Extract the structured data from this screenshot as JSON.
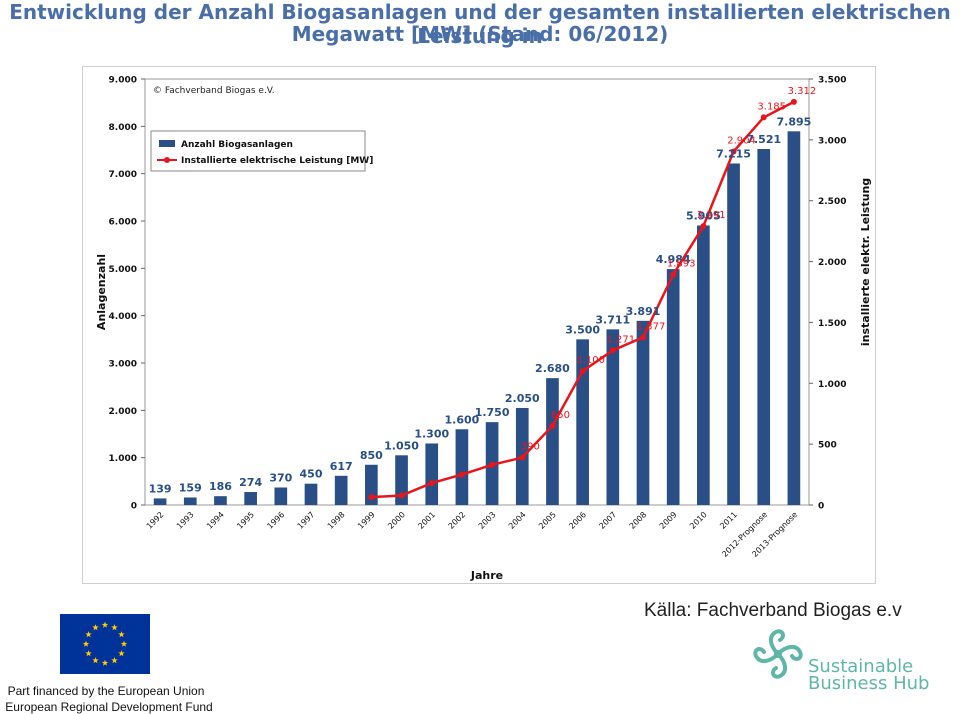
{
  "header": {
    "line1": "Entwicklung der Anzahl Biogasanlagen und der gesamten installierten elektrischen Leistung in",
    "line2": "Megawatt [MW] (Stand: 06/2012)"
  },
  "chart_data": {
    "type": "bar",
    "copyright": "© Fachverband Biogas e.V.",
    "categories": [
      "1992",
      "1993",
      "1994",
      "1995",
      "1996",
      "1997",
      "1998",
      "1999",
      "2000",
      "2001",
      "2002",
      "2003",
      "2004",
      "2005",
      "2006",
      "2007",
      "2008",
      "2009",
      "2010",
      "2011",
      "2012-Prognose",
      "2013-Prognose"
    ],
    "series": [
      {
        "name": "Anzahl Biogasanlagen",
        "kind": "bar",
        "axis": "left",
        "color": "#2a4f86",
        "label_color": "#2a4f86",
        "values": [
          139,
          159,
          186,
          274,
          370,
          450,
          617,
          850,
          1050,
          1300,
          1600,
          1750,
          2050,
          2680,
          3500,
          3711,
          3891,
          4984,
          5905,
          7215,
          7521,
          7895
        ],
        "labels": [
          "139",
          "159",
          "186",
          "274",
          "370",
          "450",
          "617",
          "850",
          "1.050",
          "1.300",
          "1.600",
          "1.750",
          "2.050",
          "2.680",
          "3.500",
          "3.711",
          "3.891",
          "4.984",
          "5.905",
          "7.215",
          "7.521",
          "7.895"
        ]
      },
      {
        "name": "Installierte elektrische Leistung [MW]",
        "kind": "line",
        "axis": "right",
        "color": "#e8151b",
        "label_color": "#e8151b",
        "values": [
          null,
          null,
          null,
          null,
          null,
          null,
          null,
          65,
          78,
          180,
          250,
          330,
          390,
          650,
          1100,
          1271,
          1377,
          1893,
          2291,
          2904,
          3185,
          3312
        ],
        "labels": [
          "",
          "",
          "",
          "",
          "",
          "",
          "",
          "",
          "",
          "",
          "",
          "",
          "390",
          "650",
          "1.100",
          "1.271",
          "1.377",
          "1.893",
          "2.291",
          "2.904",
          "3.185",
          "3.312"
        ]
      }
    ],
    "y_left": {
      "label": "Anlagenzahl",
      "min": 0,
      "max": 9000,
      "ticks": [
        0,
        1000,
        2000,
        3000,
        4000,
        5000,
        6000,
        7000,
        8000,
        9000
      ],
      "tick_labels": [
        "0",
        "1.000",
        "2.000",
        "3.000",
        "4.000",
        "5.000",
        "6.000",
        "7.000",
        "8.000",
        "9.000"
      ]
    },
    "y_right": {
      "label": "installierte elektr. Leistung",
      "min": 0,
      "max": 3500,
      "ticks": [
        0,
        500,
        1000,
        1500,
        2000,
        2500,
        3000,
        3500
      ],
      "tick_labels": [
        "0",
        "500",
        "1.000",
        "1.500",
        "2.000",
        "2.500",
        "3.000",
        "3.500"
      ]
    },
    "xlabel": "Jahre",
    "legend_position": "top-left"
  },
  "footer": {
    "source": "Källa: Fachverband Biogas e.v",
    "funding_line1": "Part financed by the European Union",
    "funding_line2": "European Regional Development Fund",
    "logo_line1": "Sustainable",
    "logo_line2": "Business Hub",
    "logo_color": "#5fb6a8"
  }
}
